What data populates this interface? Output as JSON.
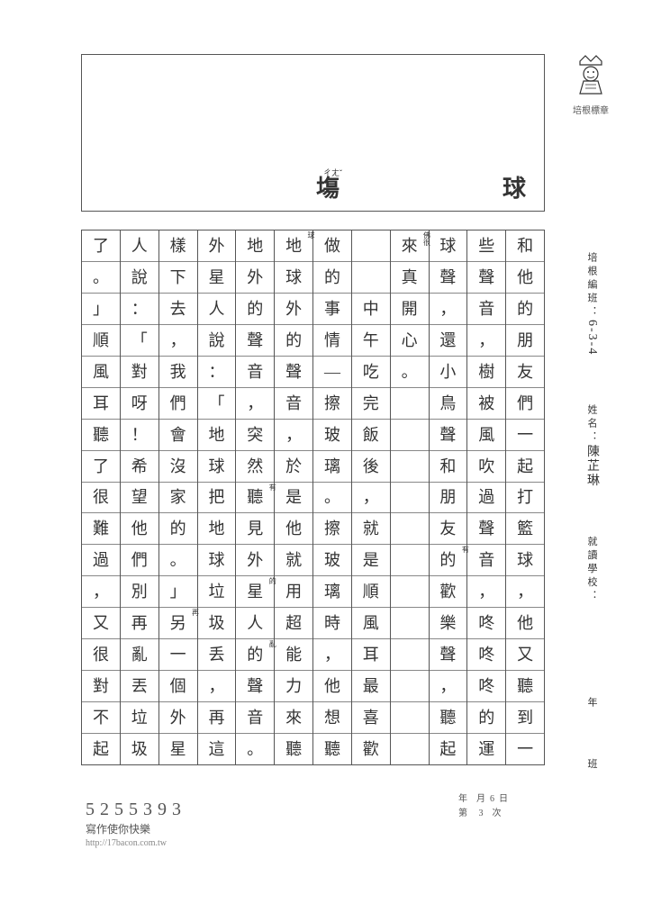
{
  "stamp": {
    "label": "培根標章"
  },
  "picture": {
    "char_right": "球",
    "char_mid": "塲",
    "ruby_mid": "ㄔㄤˇ"
  },
  "meta": {
    "class_label": "培根編班：",
    "class_value": "6-3-4",
    "name_label": "姓名：",
    "name_value": "陳芷琳",
    "school_label": "就讀學校：",
    "year_label": "年",
    "group_label": "班"
  },
  "columns": [
    [
      "和",
      "他",
      "的",
      "朋",
      "友",
      "們",
      "一",
      "起",
      "打",
      "籃",
      "球",
      "，",
      "他",
      "又",
      "聽",
      "到",
      "一"
    ],
    [
      "些",
      "聲",
      "音",
      "，",
      "樹",
      "被",
      "風",
      "吹",
      "過",
      "聲",
      "音",
      "，",
      "咚",
      "咚",
      "咚",
      "的",
      "運"
    ],
    [
      "球",
      "聲",
      "，",
      "還",
      "小",
      "鳥",
      "聲",
      "和",
      "朋",
      "友",
      "的",
      "歡",
      "樂",
      "聲",
      "，",
      "聽",
      "起"
    ],
    [
      "來",
      "真",
      "開",
      "心",
      "。",
      "",
      "",
      "",
      "",
      "",
      "",
      "",
      "",
      "",
      "",
      "",
      ""
    ],
    [
      "",
      "",
      "中",
      "午",
      "吃",
      "完",
      "飯",
      "後",
      "，",
      "就",
      "是",
      "順",
      "風",
      "耳",
      "最",
      "喜",
      "歡"
    ],
    [
      "做",
      "的",
      "事",
      "情",
      "—",
      "擦",
      "玻",
      "璃",
      "。",
      "擦",
      "玻",
      "璃",
      "時",
      "，",
      "他",
      "想",
      "聽"
    ],
    [
      "地",
      "球",
      "外",
      "的",
      "聲",
      "音",
      "，",
      "於",
      "是",
      "他",
      "就",
      "用",
      "超",
      "能",
      "力",
      "來",
      "聽"
    ],
    [
      "地",
      "外",
      "的",
      "聲",
      "音",
      "，",
      "突",
      "然",
      "聽",
      "見",
      "外",
      "星",
      "人",
      "的",
      "聲",
      "音",
      "。"
    ],
    [
      "外",
      "星",
      "人",
      "說",
      "：",
      "「",
      "地",
      "球",
      "把",
      "地",
      "球",
      "垃",
      "圾",
      "丢",
      "，",
      "再",
      "這"
    ],
    [
      "樣",
      "下",
      "去",
      "，",
      "我",
      "們",
      "會",
      "沒",
      "家",
      "的",
      "。",
      "」",
      "另",
      "一",
      "個",
      "外",
      "星"
    ],
    [
      "人",
      "說",
      "：",
      "「",
      "對",
      "呀",
      "！",
      "希",
      "望",
      "他",
      "們",
      "別",
      "再",
      "亂",
      "丟",
      "垃",
      "圾"
    ],
    [
      "了",
      "。",
      "」",
      "順",
      "風",
      "耳",
      "聽",
      "了",
      "很",
      "難",
      "過",
      "，",
      "又",
      "很",
      "對",
      "不",
      "起"
    ]
  ],
  "annotations": {
    "2-10": "有",
    "3-0": "佛很",
    "6-0": "球",
    "7-8": "有",
    "7-11": "的",
    "7-13": "亂",
    "9-12": "再"
  },
  "footer_right": {
    "line1_y": "年",
    "line1_m": "月",
    "line1_d": "6",
    "line1_dlabel": "日",
    "line2_label": "第",
    "line2_val": "3",
    "line2_suffix": "次"
  },
  "footer_left": {
    "number": "5255393",
    "slogan": "寫作使你快樂",
    "url": "http://17bacon.com.tw"
  },
  "style": {
    "page_bg": "#ffffff",
    "border_color": "#555555",
    "grid_line_color": "#888888",
    "text_color": "#333333",
    "cell_fontsize": 18,
    "meta_fontsize": 11
  }
}
